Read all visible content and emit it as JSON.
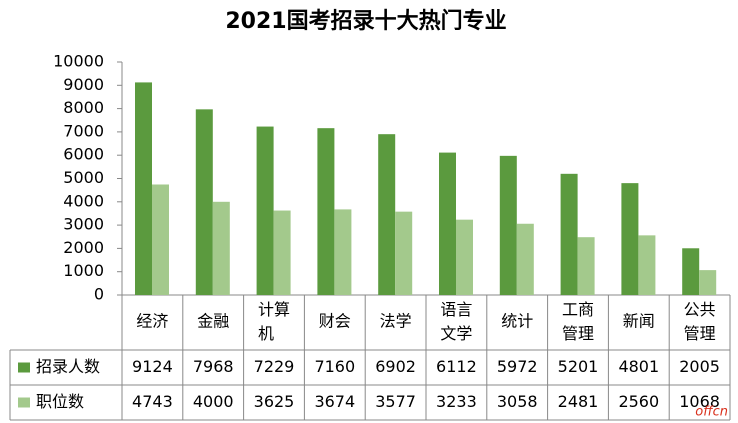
{
  "chart_data": {
    "type": "bar",
    "title": "2021国考招录十大热门专业",
    "categories": [
      "经济",
      "金融",
      "计算机",
      "财会",
      "法学",
      "语言文学",
      "统计",
      "工商管理",
      "新闻",
      "公共管理"
    ],
    "series": [
      {
        "name": "招录人数",
        "color": "#5b9a3e",
        "values": [
          9124,
          7968,
          7229,
          7160,
          6902,
          6112,
          5972,
          5201,
          4801,
          2005
        ]
      },
      {
        "name": "职位数",
        "color": "#a3c98c",
        "values": [
          4743,
          4000,
          3625,
          3674,
          3577,
          3233,
          3058,
          2481,
          2560,
          1068
        ]
      }
    ],
    "ylim": [
      0,
      10000
    ],
    "yticks": [
      0,
      1000,
      2000,
      3000,
      4000,
      5000,
      6000,
      7000,
      8000,
      9000,
      10000
    ],
    "grid": false,
    "data_table": true,
    "watermark": "offcn"
  }
}
